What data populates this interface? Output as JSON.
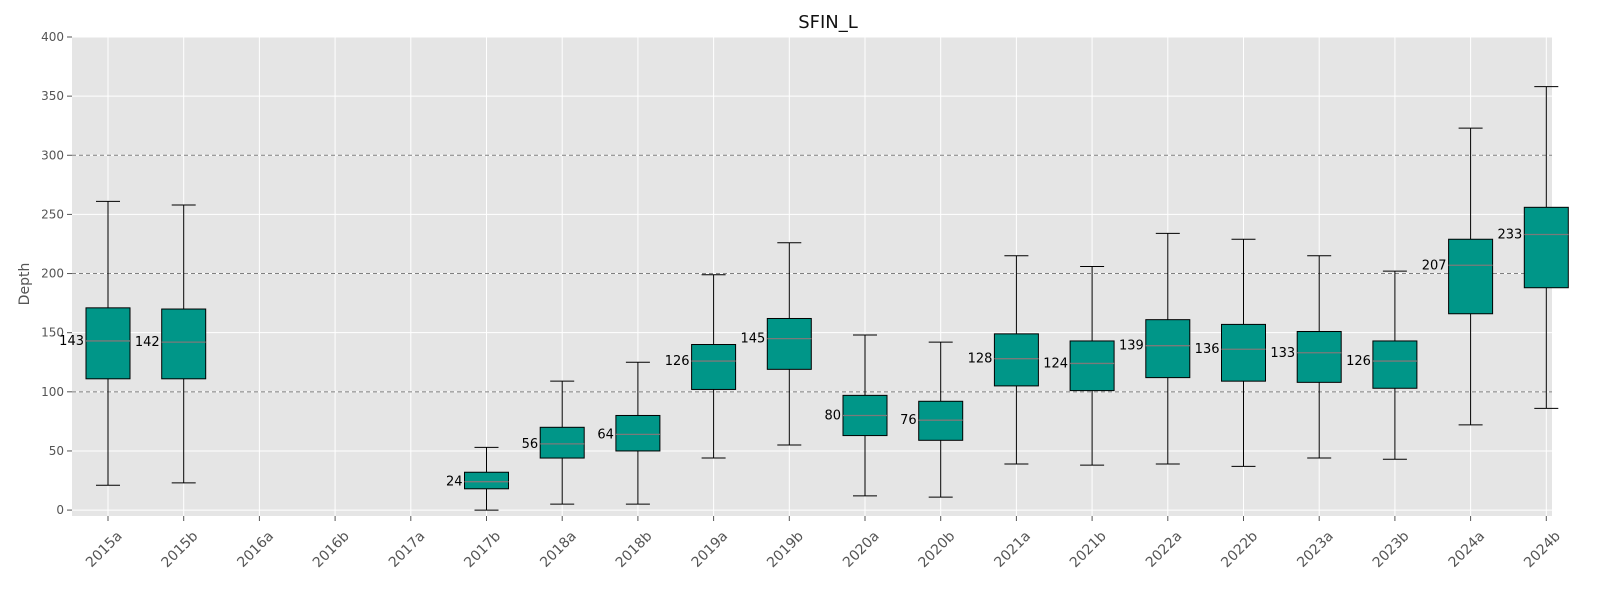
{
  "chart_data": {
    "type": "box",
    "title": "SFIN_L",
    "xlabel": "",
    "ylabel": "Depth",
    "ylim": [
      -5,
      400
    ],
    "yticks": [
      0,
      50,
      100,
      150,
      200,
      250,
      300,
      350,
      400
    ],
    "reference_lines": [
      100,
      200,
      300
    ],
    "grid": true,
    "colors": {
      "box_fill": "#009688",
      "median": "#7a7a7a",
      "plot_bg": "#e5e5e5",
      "grid": "#ffffff",
      "reference_line": "#808080"
    },
    "categories": [
      "2015a",
      "2015b",
      "2016a",
      "2016b",
      "2017a",
      "2017b",
      "2018a",
      "2018b",
      "2019a",
      "2019b",
      "2020a",
      "2020b",
      "2021a",
      "2021b",
      "2022a",
      "2022b",
      "2023a",
      "2023b",
      "2024a",
      "2024b"
    ],
    "boxes": [
      {
        "category": "2015a",
        "whisker_low": 21,
        "q1": 111,
        "median": 143,
        "q3": 171,
        "whisker_high": 261,
        "label": "143"
      },
      {
        "category": "2015b",
        "whisker_low": 23,
        "q1": 111,
        "median": 142,
        "q3": 170,
        "whisker_high": 258,
        "label": "142"
      },
      {
        "category": "2016a",
        "whisker_low": null,
        "q1": null,
        "median": null,
        "q3": null,
        "whisker_high": null,
        "label": ""
      },
      {
        "category": "2016b",
        "whisker_low": null,
        "q1": null,
        "median": null,
        "q3": null,
        "whisker_high": null,
        "label": ""
      },
      {
        "category": "2017a",
        "whisker_low": null,
        "q1": null,
        "median": null,
        "q3": null,
        "whisker_high": null,
        "label": ""
      },
      {
        "category": "2017b",
        "whisker_low": 0,
        "q1": 18,
        "median": 24,
        "q3": 32,
        "whisker_high": 53,
        "label": "24"
      },
      {
        "category": "2018a",
        "whisker_low": 5,
        "q1": 44,
        "median": 56,
        "q3": 70,
        "whisker_high": 109,
        "label": "56"
      },
      {
        "category": "2018b",
        "whisker_low": 5,
        "q1": 50,
        "median": 64,
        "q3": 80,
        "whisker_high": 125,
        "label": "64"
      },
      {
        "category": "2019a",
        "whisker_low": 44,
        "q1": 102,
        "median": 126,
        "q3": 140,
        "whisker_high": 199,
        "label": "126"
      },
      {
        "category": "2019b",
        "whisker_low": 55,
        "q1": 119,
        "median": 145,
        "q3": 162,
        "whisker_high": 226,
        "label": "145"
      },
      {
        "category": "2020a",
        "whisker_low": 12,
        "q1": 63,
        "median": 80,
        "q3": 97,
        "whisker_high": 148,
        "label": "80"
      },
      {
        "category": "2020b",
        "whisker_low": 11,
        "q1": 59,
        "median": 76,
        "q3": 92,
        "whisker_high": 142,
        "label": "76"
      },
      {
        "category": "2021a",
        "whisker_low": 39,
        "q1": 105,
        "median": 128,
        "q3": 149,
        "whisker_high": 215,
        "label": "128"
      },
      {
        "category": "2021b",
        "whisker_low": 38,
        "q1": 101,
        "median": 124,
        "q3": 143,
        "whisker_high": 206,
        "label": "124"
      },
      {
        "category": "2022a",
        "whisker_low": 39,
        "q1": 112,
        "median": 139,
        "q3": 161,
        "whisker_high": 234,
        "label": "139"
      },
      {
        "category": "2022b",
        "whisker_low": 37,
        "q1": 109,
        "median": 136,
        "q3": 157,
        "whisker_high": 229,
        "label": "136"
      },
      {
        "category": "2023a",
        "whisker_low": 44,
        "q1": 108,
        "median": 133,
        "q3": 151,
        "whisker_high": 215,
        "label": "133"
      },
      {
        "category": "2023b",
        "whisker_low": 43,
        "q1": 103,
        "median": 126,
        "q3": 143,
        "whisker_high": 202,
        "label": "126"
      },
      {
        "category": "2024a",
        "whisker_low": 72,
        "q1": 166,
        "median": 207,
        "q3": 229,
        "whisker_high": 323,
        "label": "207"
      },
      {
        "category": "2024b",
        "whisker_low": 86,
        "q1": 188,
        "median": 233,
        "q3": 256,
        "whisker_high": 358,
        "label": "233"
      }
    ]
  }
}
